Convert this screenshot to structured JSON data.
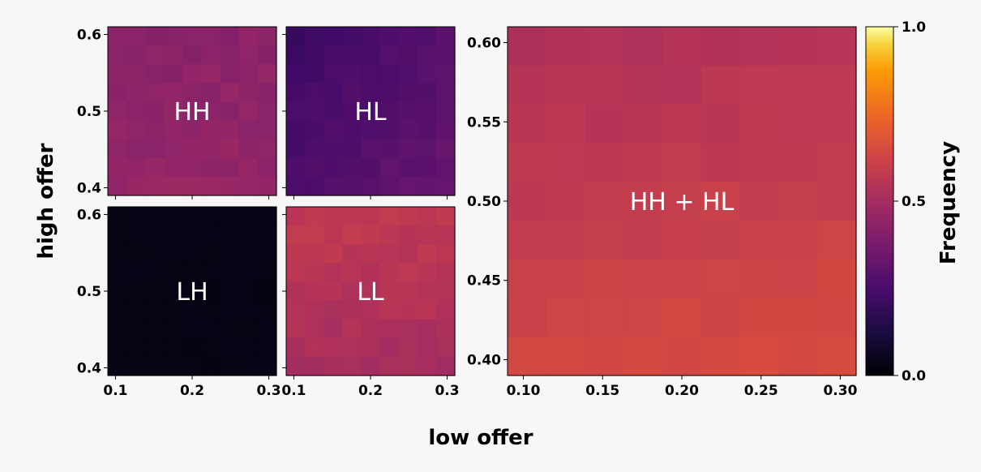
{
  "chart_data": {
    "type": "heatmap",
    "colormap": "inferno",
    "shared_labels": {
      "xlabel": "low offer",
      "ylabel": "high offer"
    },
    "colorbar": {
      "label": "Frequency",
      "range": [
        0.0,
        1.0
      ],
      "ticks": [
        "0.0",
        "0.5",
        "1.0"
      ]
    },
    "panels": [
      {
        "id": "HH",
        "label": "HH",
        "xlim": [
          0.09,
          0.31
        ],
        "ylim": [
          0.39,
          0.61
        ],
        "x_ticks": [
          "",
          "",
          ""
        ],
        "y_ticks": [
          "0.4",
          "0.5",
          "0.6"
        ],
        "base": 0.4,
        "gradient_x": 0.0,
        "gradient_y": -0.02,
        "noise": 0.02
      },
      {
        "id": "HL",
        "label": "HL",
        "xlim": [
          0.09,
          0.31
        ],
        "ylim": [
          0.39,
          0.61
        ],
        "x_ticks": [
          "",
          "",
          ""
        ],
        "y_ticks": [
          "",
          "",
          ""
        ],
        "base": 0.23,
        "gradient_x": 0.06,
        "gradient_y": -0.04,
        "noise": 0.015
      },
      {
        "id": "LH",
        "label": "LH",
        "xlim": [
          0.09,
          0.31
        ],
        "ylim": [
          0.39,
          0.61
        ],
        "x_ticks": [
          "0.1",
          "0.2",
          "0.3"
        ],
        "y_ticks": [
          "0.4",
          "0.5",
          "0.6"
        ],
        "base": 0.03,
        "gradient_x": 0.0,
        "gradient_y": 0.0,
        "noise": 0.005
      },
      {
        "id": "LL",
        "label": "LL",
        "xlim": [
          0.09,
          0.31
        ],
        "ylim": [
          0.39,
          0.61
        ],
        "x_ticks": [
          "0.1",
          "0.2",
          "0.3"
        ],
        "y_ticks": [
          "",
          "",
          ""
        ],
        "base": 0.45,
        "gradient_x": 0.0,
        "gradient_y": 0.06,
        "noise": 0.02
      },
      {
        "id": "HHHL",
        "label": "HH + HL",
        "xlim": [
          0.09,
          0.31
        ],
        "ylim": [
          0.39,
          0.61
        ],
        "x_ticks": [
          "0.10",
          "0.15",
          "0.20",
          "0.25",
          "0.30"
        ],
        "y_ticks": [
          "0.40",
          "0.45",
          "0.50",
          "0.55",
          "0.60"
        ],
        "base": 0.56,
        "gradient_x": 0.02,
        "gradient_y": -0.09,
        "noise": 0.012
      }
    ]
  }
}
